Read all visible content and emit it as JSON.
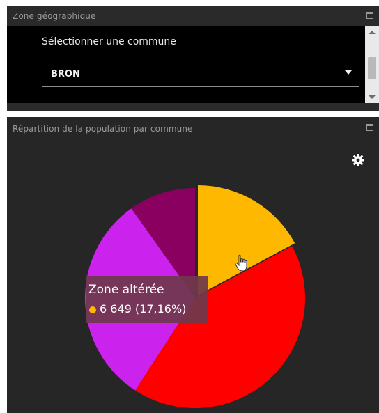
{
  "zone_panel": {
    "title": "Zone géographique",
    "field_label": "Sélectionner une commune",
    "selected_commune": "BRON",
    "maximize_icon": "maximize-icon",
    "caret_icon": "caret-down-icon"
  },
  "population_panel": {
    "title": "Répartition de la population par commune",
    "maximize_icon": "maximize-icon",
    "settings_icon": "gear-icon",
    "tooltip": {
      "label": "Zone altérée",
      "value": "6 649 (17,16%)",
      "color": "#ffb800"
    }
  },
  "chart_data": {
    "type": "pie",
    "slices": [
      {
        "label": "Zone altérée",
        "percent": 17.16,
        "color": "#ffb800"
      },
      {
        "label": "",
        "percent": 42.0,
        "color": "#ff0000"
      },
      {
        "label": "",
        "percent": 31.0,
        "color": "#cc22ee"
      },
      {
        "label": "",
        "percent": 9.84,
        "color": "#8a0060"
      }
    ],
    "start_angle_deg": 0,
    "direction": "clockwise"
  }
}
